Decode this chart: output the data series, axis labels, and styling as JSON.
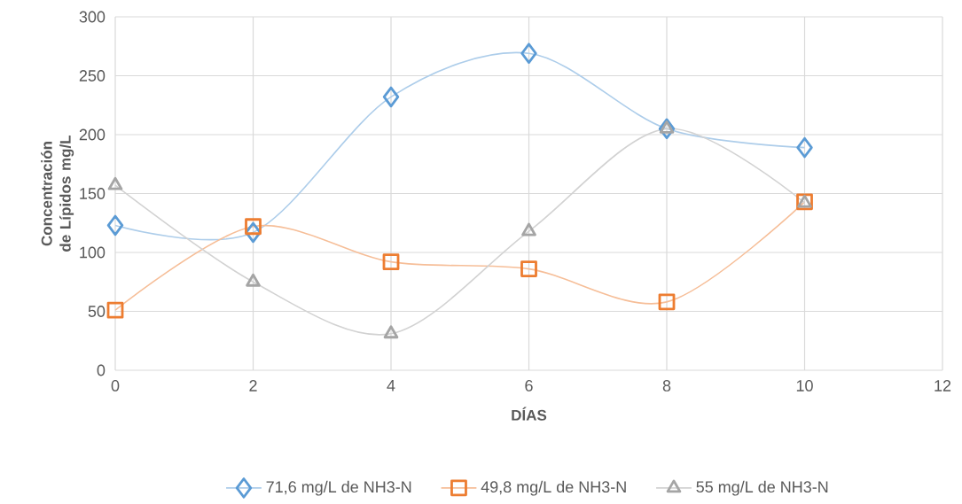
{
  "chart_data": {
    "type": "line",
    "xlabel": "DÍAS",
    "ylabel": "Concentración de Lípidos mg/L",
    "x": [
      0,
      2,
      4,
      6,
      8,
      10
    ],
    "series": [
      {
        "name": "71,6 mg/L de NH3-N",
        "color": "#5b9bd5",
        "marker": "diamond",
        "values": [
          123,
          117,
          232,
          269,
          205,
          189
        ]
      },
      {
        "name": "49,8 mg/L de NH3-N",
        "color": "#ed7d31",
        "marker": "square",
        "values": [
          51,
          122,
          92,
          86,
          58,
          143
        ]
      },
      {
        "name": "55 mg/L de NH3-N",
        "color": "#a5a5a5",
        "marker": "triangle",
        "values": [
          157,
          75,
          31,
          118,
          205,
          142
        ]
      }
    ],
    "xlim": [
      0,
      12
    ],
    "xticks": [
      0,
      2,
      4,
      6,
      8,
      10,
      12
    ],
    "ylim": [
      0,
      300
    ],
    "yticks": [
      0,
      50,
      100,
      150,
      200,
      250,
      300
    ],
    "grid": true,
    "legend": "bottom",
    "line_style": "solid"
  }
}
